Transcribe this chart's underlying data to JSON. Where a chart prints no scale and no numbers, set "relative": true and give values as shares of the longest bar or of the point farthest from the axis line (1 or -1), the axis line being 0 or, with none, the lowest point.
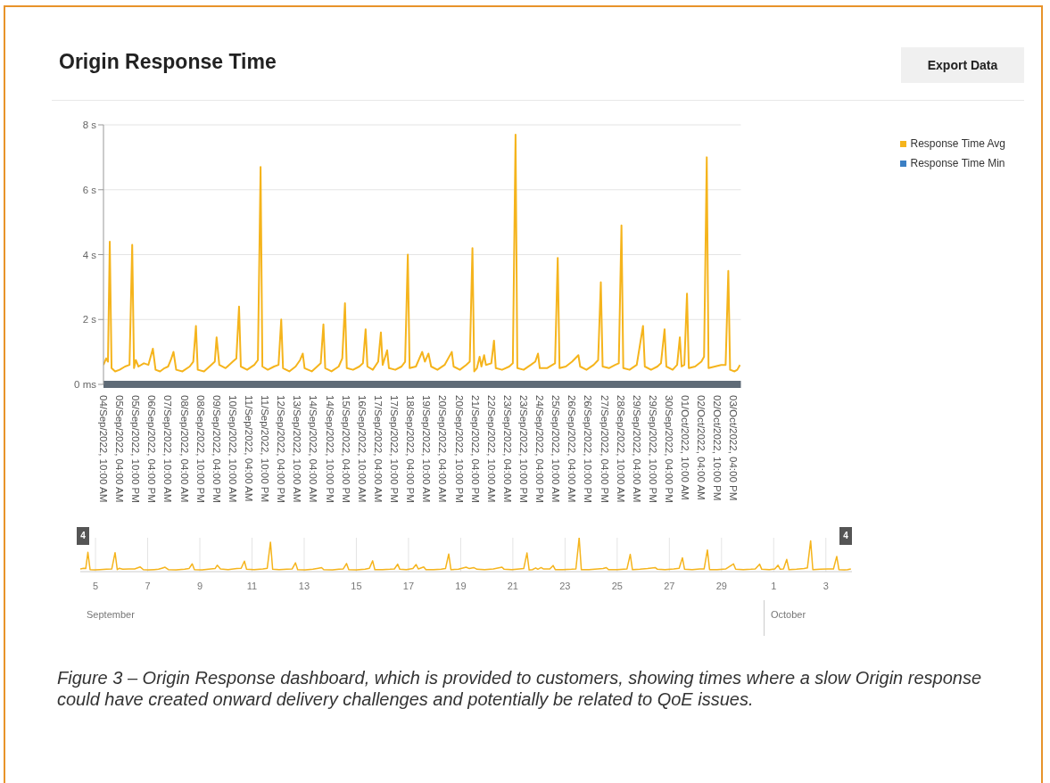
{
  "chart_data": [
    {
      "type": "line",
      "title": "Origin Response Time",
      "annotations": [
        "Export Data",
        "Figure 3 – Origin Response dashboard, which is provided to customers, showing times where a slow Origin response could have created onward delivery challenges and potentially be related to QoE issues."
      ],
      "x": [
        "2022-09-04T10:00",
        "2022-09-04T13:00",
        "2022-09-04T15:00",
        "2022-09-04T17:00",
        "2022-09-04T19:00",
        "2022-09-04T23:00",
        "2022-09-05T04:00",
        "2022-09-05T10:00",
        "2022-09-05T15:00",
        "2022-09-05T18:00",
        "2022-09-05T20:00",
        "2022-09-05T22:00",
        "2022-09-06T01:00",
        "2022-09-06T07:00",
        "2022-09-06T12:00",
        "2022-09-06T17:00",
        "2022-09-06T20:00",
        "2022-09-07T01:00",
        "2022-09-07T06:00",
        "2022-09-07T10:00",
        "2022-09-07T13:00",
        "2022-09-07T16:00",
        "2022-09-07T19:00",
        "2022-09-08T02:00",
        "2022-09-08T10:00",
        "2022-09-08T14:00",
        "2022-09-08T17:00",
        "2022-09-08T19:00",
        "2022-09-09T02:00",
        "2022-09-09T10:00",
        "2022-09-09T14:00",
        "2022-09-09T16:00",
        "2022-09-09T19:00",
        "2022-09-10T02:00",
        "2022-09-10T10:00",
        "2022-09-10T14:00",
        "2022-09-10T17:00",
        "2022-09-10T19:00",
        "2022-09-11T02:00",
        "2022-09-11T10:00",
        "2022-09-11T14:00",
        "2022-09-11T17:00",
        "2022-09-11T19:00",
        "2022-09-12T01:00",
        "2022-09-12T08:00",
        "2022-09-12T13:00",
        "2022-09-12T16:00",
        "2022-09-12T18:00",
        "2022-09-13T01:00",
        "2022-09-13T08:00",
        "2022-09-13T13:00",
        "2022-09-13T16:00",
        "2022-09-13T18:00",
        "2022-09-14T02:00",
        "2022-09-14T08:00",
        "2022-09-14T12:00",
        "2022-09-14T15:00",
        "2022-09-14T17:00",
        "2022-09-15T00:00",
        "2022-09-15T08:00",
        "2022-09-15T12:00",
        "2022-09-15T15:00",
        "2022-09-15T17:00",
        "2022-09-16T00:00",
        "2022-09-16T07:00",
        "2022-09-16T11:00",
        "2022-09-16T14:00",
        "2022-09-16T16:00",
        "2022-09-16T22:00",
        "2022-09-17T04:00",
        "2022-09-17T07:00",
        "2022-09-17T09:00",
        "2022-09-17T14:00",
        "2022-09-17T16:00",
        "2022-09-17T23:00",
        "2022-09-18T06:00",
        "2022-09-18T10:00",
        "2022-09-18T13:00",
        "2022-09-18T15:00",
        "2022-09-18T22:00",
        "2022-09-19T05:00",
        "2022-09-19T08:00",
        "2022-09-19T12:00",
        "2022-09-19T15:00",
        "2022-09-19T22:00",
        "2022-09-20T06:00",
        "2022-09-20T14:00",
        "2022-09-20T16:00",
        "2022-09-20T23:00",
        "2022-09-21T06:00",
        "2022-09-21T10:00",
        "2022-09-21T13:00",
        "2022-09-21T15:00",
        "2022-09-21T18:00",
        "2022-09-21T21:00",
        "2022-09-21T23:00",
        "2022-09-22T02:00",
        "2022-09-22T04:00",
        "2022-09-22T10:00",
        "2022-09-22T13:00",
        "2022-09-22T15:00",
        "2022-09-22T22:00",
        "2022-09-23T06:00",
        "2022-09-23T10:00",
        "2022-09-23T13:00",
        "2022-09-23T15:00",
        "2022-09-23T22:00",
        "2022-09-24T06:00",
        "2022-09-24T11:00",
        "2022-09-24T14:00",
        "2022-09-24T16:00",
        "2022-09-25T00:00",
        "2022-09-25T09:00",
        "2022-09-25T12:00",
        "2022-09-25T14:00",
        "2022-09-25T21:00",
        "2022-09-26T04:00",
        "2022-09-26T11:00",
        "2022-09-26T13:00",
        "2022-09-26T20:00",
        "2022-09-27T04:00",
        "2022-09-27T09:00",
        "2022-09-27T12:00",
        "2022-09-27T14:00",
        "2022-09-27T21:00",
        "2022-09-28T04:00",
        "2022-09-28T08:00",
        "2022-09-28T11:00",
        "2022-09-28T13:00",
        "2022-09-28T20:00",
        "2022-09-29T04:00",
        "2022-09-29T11:00",
        "2022-09-29T13:00",
        "2022-09-29T20:00",
        "2022-09-30T03:00",
        "2022-09-30T07:00",
        "2022-09-30T11:00",
        "2022-09-30T13:00",
        "2022-09-30T20:00",
        "2022-10-01T01:00",
        "2022-10-01T04:00",
        "2022-10-01T06:00",
        "2022-10-01T09:00",
        "2022-10-01T12:00",
        "2022-10-01T14:00",
        "2022-10-01T21:00",
        "2022-10-02T04:00",
        "2022-10-02T07:00",
        "2022-10-02T10:00",
        "2022-10-02T12:00",
        "2022-10-02T19:00",
        "2022-10-03T02:00",
        "2022-10-03T07:00",
        "2022-10-03T10:00",
        "2022-10-03T12:00",
        "2022-10-03T17:00",
        "2022-10-03T20:00",
        "2022-10-03T23:00"
      ],
      "series": [
        {
          "name": "Response Time Avg",
          "color": "#f5b41c",
          "values": [
            0.6,
            0.8,
            0.7,
            4.4,
            0.5,
            0.4,
            0.45,
            0.55,
            0.6,
            4.3,
            0.5,
            0.75,
            0.55,
            0.65,
            0.6,
            1.1,
            0.45,
            0.4,
            0.5,
            0.55,
            0.75,
            1.0,
            0.45,
            0.4,
            0.55,
            0.7,
            1.8,
            0.45,
            0.4,
            0.6,
            0.7,
            1.45,
            0.6,
            0.5,
            0.7,
            0.8,
            2.4,
            0.55,
            0.45,
            0.6,
            0.75,
            6.7,
            0.55,
            0.45,
            0.55,
            0.6,
            2.0,
            0.5,
            0.4,
            0.55,
            0.75,
            0.95,
            0.5,
            0.4,
            0.55,
            0.65,
            1.85,
            0.5,
            0.4,
            0.55,
            0.8,
            2.5,
            0.5,
            0.45,
            0.55,
            0.65,
            1.7,
            0.55,
            0.45,
            0.7,
            1.6,
            0.6,
            1.05,
            0.5,
            0.45,
            0.55,
            0.7,
            4.0,
            0.5,
            0.55,
            1.0,
            0.7,
            0.95,
            0.55,
            0.45,
            0.6,
            1.0,
            0.55,
            0.45,
            0.6,
            0.7,
            4.2,
            0.4,
            0.5,
            0.85,
            0.55,
            0.9,
            0.6,
            0.65,
            1.35,
            0.5,
            0.45,
            0.55,
            0.65,
            7.7,
            0.5,
            0.45,
            0.6,
            0.7,
            0.95,
            0.5,
            0.5,
            0.65,
            3.9,
            0.5,
            0.55,
            0.7,
            0.9,
            0.55,
            0.45,
            0.6,
            0.75,
            3.15,
            0.55,
            0.5,
            0.6,
            0.65,
            4.9,
            0.5,
            0.45,
            0.6,
            1.8,
            0.55,
            0.45,
            0.55,
            0.65,
            1.7,
            0.55,
            0.45,
            0.6,
            1.45,
            0.55,
            0.6,
            2.8,
            0.5,
            0.55,
            0.7,
            0.85,
            7.0,
            0.5,
            0.55,
            0.6,
            0.6,
            3.5,
            0.45,
            0.4,
            0.45,
            0.6
          ]
        },
        {
          "name": "Response Time Min",
          "color": "#3b7fc4",
          "values": [
            null,
            null,
            null,
            null,
            null,
            null,
            null,
            null,
            null,
            null,
            null,
            null,
            null,
            null,
            null,
            null,
            null,
            null,
            null,
            null,
            null,
            null,
            null,
            null,
            null,
            null,
            null,
            null,
            null,
            null,
            null,
            null,
            null,
            null,
            null,
            null,
            null,
            null,
            null,
            null,
            null,
            null,
            null,
            null,
            null,
            null,
            null,
            null,
            null,
            null,
            null,
            null,
            null,
            null,
            null,
            null,
            null,
            null,
            null,
            null,
            null,
            null,
            null,
            null,
            null,
            null,
            null,
            null,
            null,
            null,
            null,
            null,
            null,
            null,
            null,
            null,
            null,
            null,
            null,
            null,
            null,
            null,
            null,
            null,
            null,
            null,
            null,
            null,
            null,
            null,
            null,
            null,
            null,
            null,
            null,
            null,
            null,
            null,
            null,
            null,
            null,
            null,
            null,
            null,
            null,
            null,
            null,
            null,
            null,
            null,
            null,
            null,
            null,
            null,
            null,
            null,
            null,
            null,
            null,
            null,
            null,
            null,
            null,
            null,
            null,
            null,
            null,
            null,
            null,
            null,
            null,
            null,
            null,
            null,
            null,
            null,
            null,
            null,
            null,
            null,
            null,
            null,
            null,
            null,
            null,
            null,
            null,
            null,
            null,
            null,
            null,
            null,
            null,
            null,
            null,
            null,
            null,
            null
          ]
        }
      ],
      "xlim": [
        "2022-09-04T10:00",
        "2022-10-04T00:00"
      ],
      "xticks": [
        {
          "value": "2022-09-04T10:00",
          "label": "04/Sep/2022, 10:00 AM"
        },
        {
          "value": "2022-09-05T04:00",
          "label": "05/Sep/2022, 04:00 AM"
        },
        {
          "value": "2022-09-05T22:00",
          "label": "05/Sep/2022, 10:00 PM"
        },
        {
          "value": "2022-09-06T16:00",
          "label": "06/Sep/2022, 04:00 PM"
        },
        {
          "value": "2022-09-07T10:00",
          "label": "07/Sep/2022, 10:00 AM"
        },
        {
          "value": "2022-09-08T04:00",
          "label": "08/Sep/2022, 04:00 AM"
        },
        {
          "value": "2022-09-08T22:00",
          "label": "08/Sep/2022, 10:00 PM"
        },
        {
          "value": "2022-09-09T16:00",
          "label": "09/Sep/2022, 04:00 PM"
        },
        {
          "value": "2022-09-10T10:00",
          "label": "10/Sep/2022, 10:00 AM"
        },
        {
          "value": "2022-09-11T04:00",
          "label": "11/Sep/2022, 04:00 AM"
        },
        {
          "value": "2022-09-11T22:00",
          "label": "11/Sep/2022, 10:00 PM"
        },
        {
          "value": "2022-09-12T16:00",
          "label": "12/Sep/2022, 04:00 PM"
        },
        {
          "value": "2022-09-13T10:00",
          "label": "13/Sep/2022, 10:00 AM"
        },
        {
          "value": "2022-09-14T04:00",
          "label": "14/Sep/2022, 04:00 AM"
        },
        {
          "value": "2022-09-14T22:00",
          "label": "14/Sep/2022, 10:00 PM"
        },
        {
          "value": "2022-09-15T16:00",
          "label": "15/Sep/2022, 04:00 PM"
        },
        {
          "value": "2022-09-16T10:00",
          "label": "16/Sep/2022, 10:00 AM"
        },
        {
          "value": "2022-09-17T04:00",
          "label": "17/Sep/2022, 04:00 AM"
        },
        {
          "value": "2022-09-17T22:00",
          "label": "17/Sep/2022, 10:00 PM"
        },
        {
          "value": "2022-09-18T16:00",
          "label": "18/Sep/2022, 04:00 PM"
        },
        {
          "value": "2022-09-19T10:00",
          "label": "19/Sep/2022, 10:00 AM"
        },
        {
          "value": "2022-09-20T04:00",
          "label": "20/Sep/2022, 04:00 AM"
        },
        {
          "value": "2022-09-20T22:00",
          "label": "20/Sep/2022, 10:00 PM"
        },
        {
          "value": "2022-09-21T16:00",
          "label": "21/Sep/2022, 04:00 PM"
        },
        {
          "value": "2022-09-22T10:00",
          "label": "22/Sep/2022, 10:00 AM"
        },
        {
          "value": "2022-09-23T04:00",
          "label": "23/Sep/2022, 04:00 AM"
        },
        {
          "value": "2022-09-23T22:00",
          "label": "23/Sep/2022, 10:00 PM"
        },
        {
          "value": "2022-09-24T16:00",
          "label": "24/Sep/2022, 04:00 PM"
        },
        {
          "value": "2022-09-25T10:00",
          "label": "25/Sep/2022, 10:00 AM"
        },
        {
          "value": "2022-09-26T04:00",
          "label": "26/Sep/2022, 04:00 AM"
        },
        {
          "value": "2022-09-26T22:00",
          "label": "26/Sep/2022, 10:00 PM"
        },
        {
          "value": "2022-09-27T16:00",
          "label": "27/Sep/2022, 04:00 PM"
        },
        {
          "value": "2022-09-28T10:00",
          "label": "28/Sep/2022, 10:00 AM"
        },
        {
          "value": "2022-09-29T04:00",
          "label": "29/Sep/2022, 04:00 AM"
        },
        {
          "value": "2022-09-29T22:00",
          "label": "29/Sep/2022, 10:00 PM"
        },
        {
          "value": "2022-09-30T16:00",
          "label": "30/Sep/2022, 04:00 PM"
        },
        {
          "value": "2022-10-01T10:00",
          "label": "01/Oct/2022, 10:00 AM"
        },
        {
          "value": "2022-10-02T04:00",
          "label": "02/Oct/2022, 04:00 AM"
        },
        {
          "value": "2022-10-02T22:00",
          "label": "02/Oct/2022, 10:00 PM"
        },
        {
          "value": "2022-10-03T16:00",
          "label": "03/Oct/2022, 04:00 PM"
        }
      ],
      "ylim": [
        0,
        8
      ],
      "yticks": [
        {
          "value": 0,
          "label": "0 ms"
        },
        {
          "value": 2,
          "label": "2 s"
        },
        {
          "value": 4,
          "label": "4 s"
        },
        {
          "value": 6,
          "label": "6 s"
        },
        {
          "value": 8,
          "label": "8 s"
        }
      ],
      "grid": "y",
      "legend": "top right"
    },
    {
      "type": "line",
      "annotations": [
        "4",
        "4",
        "September",
        "October"
      ],
      "x": [
        "2022-09-04T10:00",
        "2022-09-04T13:00",
        "2022-09-04T15:00",
        "2022-09-04T17:00",
        "2022-09-04T19:00",
        "2022-09-04T23:00",
        "2022-09-05T04:00",
        "2022-09-05T10:00",
        "2022-09-05T15:00",
        "2022-09-05T18:00",
        "2022-09-05T20:00",
        "2022-09-05T22:00",
        "2022-09-06T01:00",
        "2022-09-06T07:00",
        "2022-09-06T12:00",
        "2022-09-06T17:00",
        "2022-09-06T20:00",
        "2022-09-07T01:00",
        "2022-09-07T06:00",
        "2022-09-07T10:00",
        "2022-09-07T13:00",
        "2022-09-07T16:00",
        "2022-09-07T19:00",
        "2022-09-08T02:00",
        "2022-09-08T10:00",
        "2022-09-08T14:00",
        "2022-09-08T17:00",
        "2022-09-08T19:00",
        "2022-09-09T02:00",
        "2022-09-09T10:00",
        "2022-09-09T14:00",
        "2022-09-09T16:00",
        "2022-09-09T19:00",
        "2022-09-10T02:00",
        "2022-09-10T10:00",
        "2022-09-10T14:00",
        "2022-09-10T17:00",
        "2022-09-10T19:00",
        "2022-09-11T02:00",
        "2022-09-11T10:00",
        "2022-09-11T14:00",
        "2022-09-11T17:00",
        "2022-09-11T19:00",
        "2022-09-12T01:00",
        "2022-09-12T08:00",
        "2022-09-12T13:00",
        "2022-09-12T16:00",
        "2022-09-12T18:00",
        "2022-09-13T01:00",
        "2022-09-13T08:00",
        "2022-09-13T13:00",
        "2022-09-13T16:00",
        "2022-09-13T18:00",
        "2022-09-14T02:00",
        "2022-09-14T08:00",
        "2022-09-14T12:00",
        "2022-09-14T15:00",
        "2022-09-14T17:00",
        "2022-09-15T00:00",
        "2022-09-15T08:00",
        "2022-09-15T12:00",
        "2022-09-15T15:00",
        "2022-09-15T17:00",
        "2022-09-16T00:00",
        "2022-09-16T07:00",
        "2022-09-16T11:00",
        "2022-09-16T14:00",
        "2022-09-16T16:00",
        "2022-09-16T22:00",
        "2022-09-17T04:00",
        "2022-09-17T07:00",
        "2022-09-17T09:00",
        "2022-09-17T14:00",
        "2022-09-17T16:00",
        "2022-09-17T23:00",
        "2022-09-18T06:00",
        "2022-09-18T10:00",
        "2022-09-18T13:00",
        "2022-09-18T15:00",
        "2022-09-18T22:00",
        "2022-09-19T05:00",
        "2022-09-19T08:00",
        "2022-09-19T12:00",
        "2022-09-19T15:00",
        "2022-09-19T22:00",
        "2022-09-20T06:00",
        "2022-09-20T14:00",
        "2022-09-20T16:00",
        "2022-09-20T23:00",
        "2022-09-21T06:00",
        "2022-09-21T10:00",
        "2022-09-21T13:00",
        "2022-09-21T15:00",
        "2022-09-21T18:00",
        "2022-09-21T21:00",
        "2022-09-21T23:00",
        "2022-09-22T02:00",
        "2022-09-22T04:00",
        "2022-09-22T10:00",
        "2022-09-22T13:00",
        "2022-09-22T15:00",
        "2022-09-22T22:00",
        "2022-09-23T06:00",
        "2022-09-23T10:00",
        "2022-09-23T13:00",
        "2022-09-23T15:00",
        "2022-09-23T22:00",
        "2022-09-24T06:00",
        "2022-09-24T11:00",
        "2022-09-24T14:00",
        "2022-09-24T16:00",
        "2022-09-25T00:00",
        "2022-09-25T09:00",
        "2022-09-25T12:00",
        "2022-09-25T14:00",
        "2022-09-25T21:00",
        "2022-09-26T04:00",
        "2022-09-26T11:00",
        "2022-09-26T13:00",
        "2022-09-26T20:00",
        "2022-09-27T04:00",
        "2022-09-27T09:00",
        "2022-09-27T12:00",
        "2022-09-27T14:00",
        "2022-09-27T21:00",
        "2022-09-28T04:00",
        "2022-09-28T08:00",
        "2022-09-28T11:00",
        "2022-09-28T13:00",
        "2022-09-28T20:00",
        "2022-09-29T04:00",
        "2022-09-29T11:00",
        "2022-09-29T13:00",
        "2022-09-29T20:00",
        "2022-09-30T03:00",
        "2022-09-30T07:00",
        "2022-09-30T11:00",
        "2022-09-30T13:00",
        "2022-09-30T20:00",
        "2022-10-01T01:00",
        "2022-10-01T04:00",
        "2022-10-01T06:00",
        "2022-10-01T09:00",
        "2022-10-01T12:00",
        "2022-10-01T14:00",
        "2022-10-01T21:00",
        "2022-10-02T04:00",
        "2022-10-02T07:00",
        "2022-10-02T10:00",
        "2022-10-02T12:00",
        "2022-10-02T19:00",
        "2022-10-03T02:00",
        "2022-10-03T07:00",
        "2022-10-03T10:00",
        "2022-10-03T12:00",
        "2022-10-03T17:00",
        "2022-10-03T20:00",
        "2022-10-03T23:00"
      ],
      "series": [
        {
          "color": "#f5b41c",
          "values": [
            0.08,
            0.1,
            0.09,
            0.57,
            0.06,
            0.05,
            0.06,
            0.07,
            0.08,
            0.56,
            0.06,
            0.1,
            0.07,
            0.08,
            0.08,
            0.14,
            0.06,
            0.05,
            0.06,
            0.07,
            0.1,
            0.13,
            0.06,
            0.05,
            0.07,
            0.09,
            0.23,
            0.06,
            0.05,
            0.08,
            0.09,
            0.19,
            0.08,
            0.06,
            0.09,
            0.1,
            0.31,
            0.07,
            0.06,
            0.08,
            0.1,
            0.87,
            0.07,
            0.06,
            0.07,
            0.08,
            0.26,
            0.06,
            0.05,
            0.07,
            0.1,
            0.12,
            0.06,
            0.05,
            0.07,
            0.08,
            0.24,
            0.06,
            0.05,
            0.07,
            0.1,
            0.32,
            0.06,
            0.06,
            0.07,
            0.08,
            0.22,
            0.07,
            0.06,
            0.09,
            0.21,
            0.08,
            0.14,
            0.06,
            0.06,
            0.07,
            0.09,
            0.52,
            0.06,
            0.07,
            0.13,
            0.09,
            0.12,
            0.07,
            0.06,
            0.08,
            0.13,
            0.07,
            0.06,
            0.08,
            0.09,
            0.55,
            0.05,
            0.06,
            0.11,
            0.07,
            0.12,
            0.08,
            0.08,
            0.18,
            0.06,
            0.06,
            0.07,
            0.08,
            1,
            0.06,
            0.06,
            0.08,
            0.09,
            0.12,
            0.06,
            0.06,
            0.08,
            0.51,
            0.06,
            0.07,
            0.09,
            0.12,
            0.07,
            0.06,
            0.08,
            0.1,
            0.41,
            0.07,
            0.06,
            0.08,
            0.08,
            0.64,
            0.06,
            0.06,
            0.08,
            0.23,
            0.07,
            0.06,
            0.07,
            0.08,
            0.22,
            0.07,
            0.06,
            0.08,
            0.19,
            0.07,
            0.08,
            0.36,
            0.06,
            0.07,
            0.09,
            0.11,
            0.91,
            0.06,
            0.07,
            0.08,
            0.08,
            0.45,
            0.06,
            0.05,
            0.06,
            0.08
          ]
        }
      ],
      "xlim": [
        "2022-09-04T10:00",
        "2022-10-04T00:00"
      ],
      "xticks": [
        {
          "value": "2022-09-05",
          "label": "5"
        },
        {
          "value": "2022-09-07",
          "label": "7"
        },
        {
          "value": "2022-09-09",
          "label": "9"
        },
        {
          "value": "2022-09-11",
          "label": "11"
        },
        {
          "value": "2022-09-13",
          "label": "13"
        },
        {
          "value": "2022-09-15",
          "label": "15"
        },
        {
          "value": "2022-09-17",
          "label": "17"
        },
        {
          "value": "2022-09-19",
          "label": "19"
        },
        {
          "value": "2022-09-21",
          "label": "21"
        },
        {
          "value": "2022-09-23",
          "label": "23"
        },
        {
          "value": "2022-09-25",
          "label": "25"
        },
        {
          "value": "2022-09-27",
          "label": "27"
        },
        {
          "value": "2022-09-29",
          "label": "29"
        },
        {
          "value": "2022-10-01",
          "label": "1"
        },
        {
          "value": "2022-10-03",
          "label": "3"
        }
      ],
      "relative": true,
      "tick_labels": "x",
      "grid": "x"
    }
  ]
}
